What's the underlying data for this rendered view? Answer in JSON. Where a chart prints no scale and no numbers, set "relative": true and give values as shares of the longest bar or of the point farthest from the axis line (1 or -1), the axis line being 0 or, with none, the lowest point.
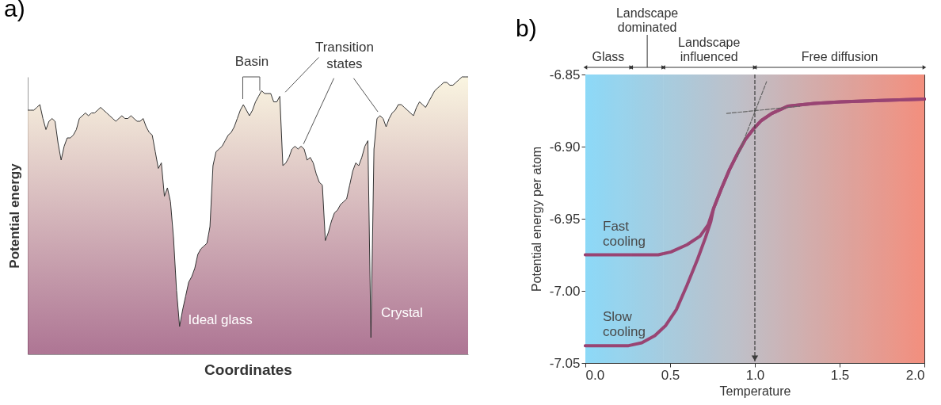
{
  "chart_data": [
    {
      "type": "area",
      "title": "a)",
      "xlabel": "Coordinates",
      "ylabel": "Potential energy",
      "relative": true,
      "categories": [
        null,
        null,
        null,
        null,
        null,
        null,
        null,
        null,
        null,
        null,
        null,
        null,
        null,
        null,
        null,
        null,
        null,
        null,
        null,
        null,
        null,
        null,
        null,
        null,
        null,
        null,
        null,
        null,
        null,
        null,
        null,
        null,
        null,
        null,
        null,
        null,
        null,
        null,
        null,
        null,
        null,
        null,
        null,
        null,
        null,
        null,
        null,
        null,
        null,
        null,
        null,
        null,
        null,
        null,
        null,
        null,
        null,
        null,
        null,
        null,
        null,
        null,
        null,
        null,
        null,
        null,
        null,
        null,
        null,
        null,
        null,
        null,
        null,
        null,
        null,
        null,
        null,
        null,
        null,
        null,
        null,
        null,
        null,
        null,
        null,
        null,
        null,
        null,
        null,
        null,
        null,
        null,
        null,
        null,
        null,
        null,
        null,
        null,
        null,
        null,
        null,
        null,
        null,
        null,
        null,
        null,
        null,
        null,
        null,
        null,
        null,
        null,
        null,
        null,
        null,
        null,
        null,
        null,
        null,
        null,
        null,
        null,
        null,
        null,
        null,
        null,
        null,
        null,
        null,
        null,
        null,
        null,
        null,
        null,
        null,
        null,
        null,
        null,
        null,
        null,
        null,
        null,
        null,
        null,
        null,
        null
      ],
      "color": "#8b3a66",
      "values": [
        0.88,
        0.88,
        0.88,
        0.89,
        0.9,
        0.85,
        0.81,
        0.84,
        0.85,
        0.84,
        0.76,
        0.7,
        0.75,
        0.78,
        0.78,
        0.79,
        0.81,
        0.85,
        0.86,
        0.87,
        0.86,
        0.87,
        0.87,
        0.88,
        0.89,
        0.88,
        0.87,
        0.86,
        0.85,
        0.84,
        0.85,
        0.86,
        0.85,
        0.85,
        0.86,
        0.85,
        0.84,
        0.84,
        0.85,
        0.82,
        0.8,
        0.79,
        0.73,
        0.67,
        0.69,
        0.57,
        0.6,
        0.55,
        0.42,
        0.23,
        0.1,
        0.16,
        0.21,
        0.26,
        0.28,
        0.31,
        0.36,
        0.38,
        0.39,
        0.4,
        0.46,
        0.68,
        0.73,
        0.74,
        0.75,
        0.77,
        0.79,
        0.8,
        0.82,
        0.85,
        0.88,
        0.9,
        0.88,
        0.86,
        0.88,
        0.91,
        0.93,
        0.95,
        0.94,
        0.94,
        0.94,
        0.91,
        0.91,
        0.93,
        0.68,
        0.69,
        0.71,
        0.74,
        0.75,
        0.74,
        0.75,
        0.74,
        0.7,
        0.71,
        0.69,
        0.65,
        0.62,
        0.61,
        0.41,
        0.44,
        0.48,
        0.51,
        0.52,
        0.54,
        0.55,
        0.56,
        0.61,
        0.66,
        0.69,
        0.68,
        0.71,
        0.75,
        0.77,
        0.06,
        0.74,
        0.85,
        0.86,
        0.85,
        0.82,
        0.85,
        0.87,
        0.88,
        0.9,
        0.9,
        0.89,
        0.88,
        0.87,
        0.86,
        0.89,
        0.91,
        0.9,
        0.89,
        0.91,
        0.93,
        0.95,
        0.96,
        0.97,
        0.98,
        0.98,
        0.97,
        0.97,
        0.98,
        0.99,
        1.0,
        1.0,
        1.0
      ],
      "annotations": [
        "Basin",
        "Transition states",
        "Ideal glass",
        "Crystal"
      ]
    },
    {
      "type": "line",
      "title": "b)",
      "xlabel": "Temperature",
      "ylabel": "Potential energy per atom",
      "xlim": [
        0,
        2
      ],
      "xticks": [
        {
          "value": 0,
          "label": "0.0"
        },
        {
          "value": 0.5,
          "label": "0.5"
        },
        {
          "value": 1,
          "label": "1.0"
        },
        {
          "value": 1.5,
          "label": "1.5"
        },
        {
          "value": 2,
          "label": "2.0"
        }
      ],
      "ylim": [
        -7.05,
        -6.85
      ],
      "yticks": [
        {
          "value": -7.05,
          "label": "-7.05"
        },
        {
          "value": -7,
          "label": "-7.00"
        },
        {
          "value": -6.95,
          "label": "-6.95"
        },
        {
          "value": -6.9,
          "label": "-6.90"
        },
        {
          "value": -6.85,
          "label": "-6.85"
        }
      ],
      "series": [
        {
          "name": "Fast cooling",
          "color": "#8e2f63",
          "x": [
            0,
            0.2,
            0.43,
            0.505,
            0.6,
            0.677,
            0.725,
            0.756,
            0.803,
            0.85,
            0.897,
            0.944,
            0.99,
            1.037,
            1.1,
            1.194,
            1.35,
            1.507,
            1.742,
            2.0
          ],
          "values": [
            -6.975,
            -6.975,
            -6.975,
            -6.973,
            -6.968,
            -6.962,
            -6.954,
            -6.943,
            -6.929,
            -6.916,
            -6.905,
            -6.895,
            -6.888,
            -6.882,
            -6.877,
            -6.872,
            -6.87,
            -6.869,
            -6.868,
            -6.867
          ]
        },
        {
          "name": "Slow cooling",
          "color": "#8e2f63",
          "x": [
            0,
            0.255,
            0.333,
            0.41,
            0.474,
            0.537,
            0.6,
            0.662,
            0.709,
            0.74,
            0.756,
            0.803,
            0.85,
            0.897,
            0.944,
            0.99,
            1.037,
            1.1,
            1.194,
            1.35,
            1.507,
            1.742,
            2.0
          ],
          "values": [
            -7.038,
            -7.038,
            -7.036,
            -7.031,
            -7.024,
            -7.013,
            -6.996,
            -6.978,
            -6.963,
            -6.952,
            -6.943,
            -6.929,
            -6.916,
            -6.905,
            -6.895,
            -6.888,
            -6.882,
            -6.877,
            -6.872,
            -6.87,
            -6.869,
            -6.868,
            -6.867
          ]
        },
        {
          "color": "#555555",
          "line_style": "dashed",
          "x": [
            0.834,
            1.264
          ],
          "values": [
            -6.877,
            -6.872
          ]
        },
        {
          "color": "#555555",
          "line_style": "dashed",
          "x": [
            0.897,
            1.069
          ],
          "values": [
            -6.907,
            -6.855
          ]
        }
      ],
      "ref_lines": [
        {
          "axis": "x",
          "value": 1.0,
          "color": "#222222",
          "line_style": "dashed"
        }
      ],
      "bands": [
        {
          "axis": "x",
          "from": 0,
          "to": 0.27,
          "label": "Glass"
        },
        {
          "axis": "x",
          "from": 0.27,
          "to": 0.46,
          "label": "Landscape dominated"
        },
        {
          "axis": "x",
          "from": 0.46,
          "to": 1.0,
          "label": "Landscape influenced"
        },
        {
          "axis": "x",
          "from": 1.0,
          "to": 2.0,
          "label": "Free diffusion"
        }
      ]
    }
  ]
}
